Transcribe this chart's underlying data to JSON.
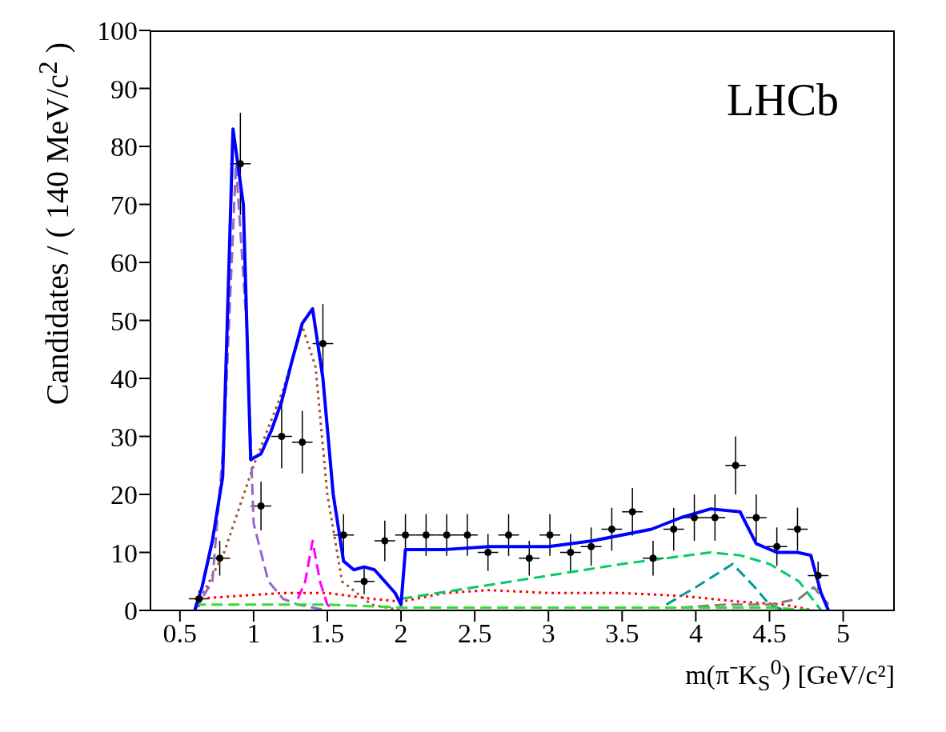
{
  "chart_data": {
    "type": "scatter",
    "xlabel": "m(π⁻K$_{S}$$^{0}$) [GeV/c²]",
    "ylabel": "Candidates / ( 140 MeV/c$^{2}$ )",
    "annotations": [
      "LHCb"
    ],
    "xlim": [
      0.3,
      5.35
    ],
    "xticks": [
      {
        "value": 0.5,
        "label": "0.5"
      },
      1,
      {
        "value": 1.5,
        "label": "1.5"
      },
      2,
      {
        "value": 2.5,
        "label": "2.5"
      },
      3,
      {
        "value": 3.5,
        "label": "3.5"
      },
      4,
      {
        "value": 4.5,
        "label": "4.5"
      },
      5
    ],
    "ylim": [
      0,
      100
    ],
    "yticks": [
      0,
      10,
      20,
      30,
      40,
      50,
      60,
      70,
      80,
      90,
      100
    ],
    "grid": false,
    "legend": false,
    "series": [
      {
        "color": "#000000",
        "marker": "circle",
        "x": [
          0.63,
          0.77,
          0.91,
          1.05,
          1.19,
          1.33,
          1.47,
          1.61,
          1.75,
          1.89,
          2.03,
          2.17,
          2.31,
          2.45,
          2.59,
          2.73,
          2.87,
          3.01,
          3.15,
          3.29,
          3.43,
          3.57,
          3.71,
          3.85,
          3.99,
          4.13,
          4.27,
          4.41,
          4.55,
          4.69,
          4.83
        ],
        "values": [
          2,
          9,
          77,
          18,
          30,
          29,
          46,
          13,
          5,
          12,
          13,
          13,
          13,
          13,
          10,
          13,
          9,
          13,
          10,
          11,
          14,
          17,
          9,
          14,
          16,
          16,
          25,
          16,
          11,
          14,
          6
        ],
        "errors": [
          1.4,
          3,
          8.8,
          4.2,
          5.5,
          5.4,
          6.8,
          3.6,
          2.2,
          3.5,
          3.6,
          3.6,
          3.6,
          3.6,
          3.2,
          3.6,
          3,
          3.6,
          3.2,
          3.3,
          3.7,
          4.1,
          3,
          3.7,
          4,
          4,
          5,
          4,
          3.3,
          3.7,
          2.4
        ],
        "xerrors": [
          0.07,
          0.07,
          0.07,
          0.07,
          0.07,
          0.07,
          0.07,
          0.07,
          0.07,
          0.07,
          0.07,
          0.07,
          0.07,
          0.07,
          0.07,
          0.07,
          0.07,
          0.07,
          0.07,
          0.07,
          0.07,
          0.07,
          0.07,
          0.07,
          0.07,
          0.07,
          0.07,
          0.07,
          0.07,
          0.07,
          0.07
        ]
      },
      {
        "type": "line",
        "color": "#a0522d",
        "line_style": "dotted",
        "x": [
          0.6,
          0.8,
          1.0,
          1.2,
          1.33,
          1.42,
          1.5,
          1.6,
          1.8,
          2.0
        ],
        "values": [
          0,
          10,
          25,
          38,
          49,
          42,
          20,
          5,
          1,
          0
        ]
      },
      {
        "type": "line",
        "color": "#9966cc",
        "line_style": "dashed",
        "x": [
          0.6,
          0.72,
          0.8,
          0.88,
          0.95,
          1.0,
          1.1,
          1.2,
          1.3,
          1.5
        ],
        "values": [
          0,
          5,
          30,
          77,
          50,
          15,
          5,
          2,
          1,
          0
        ]
      },
      {
        "type": "line",
        "color": "#ff00ff",
        "line_style": "dashed",
        "x": [
          1.3,
          1.35,
          1.4,
          1.45,
          1.5,
          1.55
        ],
        "values": [
          2,
          5,
          12,
          5,
          1,
          0
        ]
      },
      {
        "type": "line",
        "color": "#ff0000",
        "line_style": "dotted",
        "x": [
          0.6,
          0.9,
          1.2,
          1.5,
          1.8,
          2.0,
          2.3,
          2.6,
          3.0,
          3.5,
          3.9,
          4.3,
          4.6,
          4.8
        ],
        "values": [
          2,
          2.5,
          3,
          3,
          2,
          1.5,
          3,
          3.5,
          3,
          3,
          2.5,
          1.5,
          1,
          0
        ]
      },
      {
        "type": "line",
        "color": "#00cc66",
        "line_style": "dashed",
        "x": [
          2.0,
          2.5,
          3.0,
          3.5,
          3.8,
          4.1,
          4.3,
          4.5,
          4.7,
          4.85
        ],
        "values": [
          2,
          4,
          6,
          8,
          9,
          10,
          9.5,
          8,
          5,
          0
        ]
      },
      {
        "type": "line",
        "color": "#009999",
        "line_style": "dashed",
        "x": [
          3.8,
          4.0,
          4.25,
          4.4,
          4.5,
          4.6
        ],
        "values": [
          1,
          4,
          8,
          4,
          1,
          0
        ]
      },
      {
        "type": "line",
        "color": "#808080",
        "line_style": "dashed",
        "x": [
          3.9,
          4.2,
          4.5,
          4.7,
          4.8,
          4.9
        ],
        "values": [
          0.5,
          1,
          1,
          2,
          4,
          1
        ]
      },
      {
        "type": "line",
        "color": "#33dd33",
        "line_style": "dashed",
        "x": [
          0.6,
          1.0,
          1.5,
          2.0,
          2.5,
          3.0,
          3.5,
          4.0,
          4.5,
          4.8
        ],
        "values": [
          1,
          1,
          1,
          0.5,
          0.5,
          0.5,
          0.5,
          0.5,
          0.5,
          0
        ]
      },
      {
        "type": "line",
        "color": "#0000ff",
        "line_style": "solid",
        "x": [
          0.6,
          0.65,
          0.72,
          0.79,
          0.86,
          0.93,
          0.98,
          1.05,
          1.12,
          1.19,
          1.26,
          1.33,
          1.4,
          1.47,
          1.54,
          1.61,
          1.68,
          1.75,
          1.82,
          1.89,
          1.96,
          2.0,
          2.03,
          2.3,
          2.6,
          3.0,
          3.3,
          3.5,
          3.7,
          3.9,
          4.1,
          4.3,
          4.41,
          4.55,
          4.69,
          4.78,
          4.85,
          4.9
        ],
        "values": [
          0,
          4,
          12,
          23,
          83,
          70,
          26,
          27,
          31,
          36,
          43,
          49.5,
          52,
          40,
          20,
          8.5,
          7,
          7.5,
          7,
          5,
          3,
          1,
          10.5,
          10.5,
          11,
          11,
          12,
          13,
          14,
          16,
          17.5,
          17,
          11.5,
          10,
          10,
          9.5,
          3,
          0
        ]
      }
    ]
  }
}
